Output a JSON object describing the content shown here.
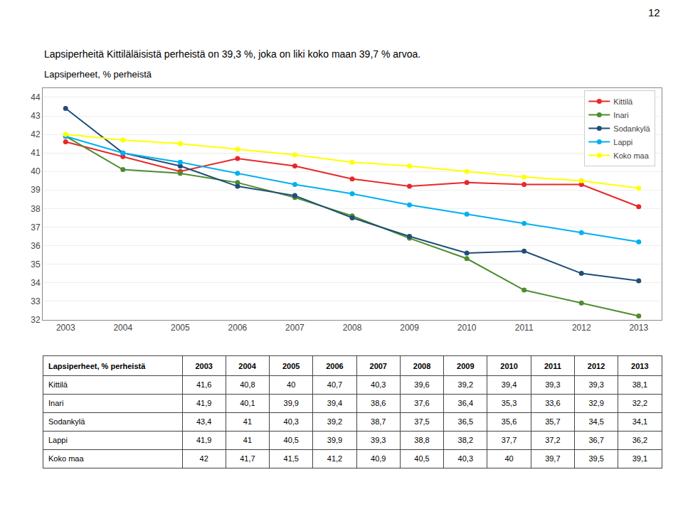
{
  "chart_data": {
    "type": "line",
    "title": "Lapsiperheet, % perheistä",
    "subtitle": "Lapsiperheitä Kittiläläisistä perheistä on 39,3 %, joka on liki koko maan 39,7 % arvoa.",
    "annotations": [
      "12"
    ],
    "x": [
      2003,
      2004,
      2005,
      2006,
      2007,
      2008,
      2009,
      2010,
      2011,
      2012,
      2013
    ],
    "series": [
      {
        "name": "Kittilä",
        "color": "#e8282a",
        "values": [
          41.6,
          40.8,
          40.0,
          40.7,
          40.3,
          39.6,
          39.2,
          39.4,
          39.3,
          39.3,
          38.1
        ]
      },
      {
        "name": "Inari",
        "color": "#4d8c2f",
        "values": [
          41.9,
          40.1,
          39.9,
          39.4,
          38.6,
          37.6,
          36.4,
          35.3,
          33.6,
          32.9,
          32.2
        ]
      },
      {
        "name": "Sodankylä",
        "color": "#1f4e79",
        "values": [
          43.4,
          41.0,
          40.3,
          39.2,
          38.7,
          37.5,
          36.5,
          35.6,
          35.7,
          34.5,
          34.1
        ]
      },
      {
        "name": "Lappi",
        "color": "#00b0f0",
        "values": [
          41.9,
          41.0,
          40.5,
          39.9,
          39.3,
          38.8,
          38.2,
          37.7,
          37.2,
          36.7,
          36.2
        ]
      },
      {
        "name": "Koko maa",
        "color": "#ffff00",
        "values": [
          42.0,
          41.7,
          41.5,
          41.2,
          40.9,
          40.5,
          40.3,
          40.0,
          39.7,
          39.5,
          39.1
        ]
      }
    ],
    "marker": "circle",
    "xlim": [
      2002.6,
      2013.4
    ],
    "xticks": [
      2003,
      2004,
      2005,
      2006,
      2007,
      2008,
      2009,
      2010,
      2011,
      2012,
      2013
    ],
    "ylim": [
      32,
      44.5
    ],
    "yticks": [
      32,
      33,
      34,
      35,
      36,
      37,
      38,
      39,
      40,
      41,
      42,
      43,
      44
    ],
    "grid": "y",
    "legend": "upper right",
    "table": {
      "header": [
        "Lapsiperheet, % perheistä",
        "2003",
        "2004",
        "2005",
        "2006",
        "2007",
        "2008",
        "2009",
        "2010",
        "2011",
        "2012",
        "2013"
      ],
      "rows": [
        [
          "Kittilä",
          "41,6",
          "40,8",
          "40",
          "40,7",
          "40,3",
          "39,6",
          "39,2",
          "39,4",
          "39,3",
          "39,3",
          "38,1"
        ],
        [
          "Inari",
          "41,9",
          "40,1",
          "39,9",
          "39,4",
          "38,6",
          "37,6",
          "36,4",
          "35,3",
          "33,6",
          "32,9",
          "32,2"
        ],
        [
          "Sodankylä",
          "43,4",
          "41",
          "40,3",
          "39,2",
          "38,7",
          "37,5",
          "36,5",
          "35,6",
          "35,7",
          "34,5",
          "34,1"
        ],
        [
          "Lappi",
          "41,9",
          "41",
          "40,5",
          "39,9",
          "39,3",
          "38,8",
          "38,2",
          "37,7",
          "37,2",
          "36,7",
          "36,2"
        ],
        [
          "Koko maa",
          "42",
          "41,7",
          "41,5",
          "41,2",
          "40,9",
          "40,5",
          "40,3",
          "40",
          "39,7",
          "39,5",
          "39,1"
        ]
      ]
    }
  }
}
